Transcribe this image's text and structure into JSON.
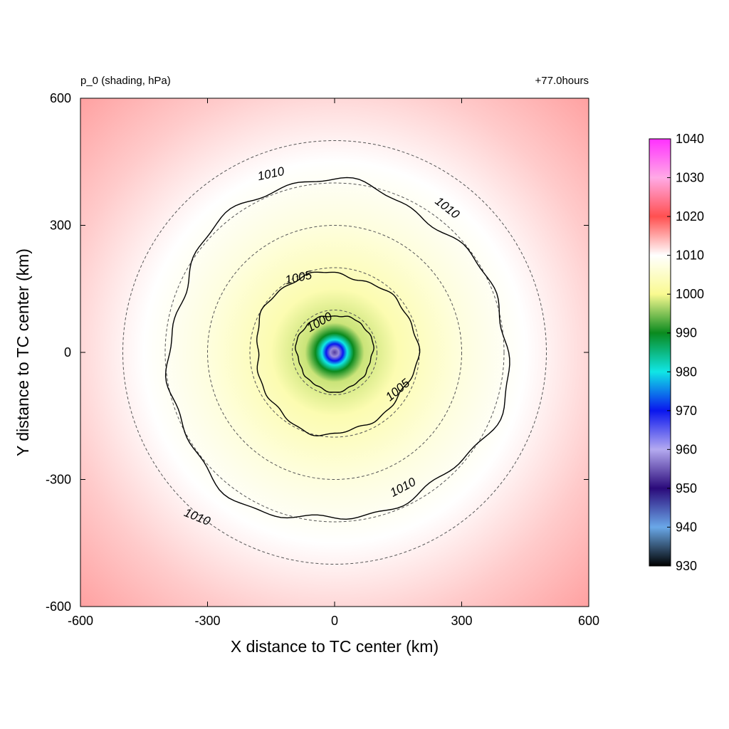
{
  "chart_data": {
    "type": "heatmap",
    "title_left": "p_0 (shading, hPa)",
    "title_right": "+77.0hours",
    "xlabel": "X distance to TC center (km)",
    "ylabel": "Y distance to TC center (km)",
    "xlim": [
      -600,
      600
    ],
    "ylim": [
      -600,
      600
    ],
    "xticks": [
      -600,
      -300,
      0,
      300,
      600
    ],
    "yticks": [
      -600,
      -300,
      0,
      300,
      600
    ],
    "colorbar": {
      "range": [
        930,
        1040
      ],
      "ticks": [
        930,
        940,
        950,
        960,
        970,
        980,
        990,
        1000,
        1010,
        1020,
        1030,
        1040
      ],
      "stops": [
        {
          "value": 930,
          "color": "#000000"
        },
        {
          "value": 940,
          "color": "#6aa8e8"
        },
        {
          "value": 950,
          "color": "#2a0a7a"
        },
        {
          "value": 960,
          "color": "#b4aaf0"
        },
        {
          "value": 970,
          "color": "#0a16ee"
        },
        {
          "value": 980,
          "color": "#10e6e6"
        },
        {
          "value": 990,
          "color": "#0a8a1e"
        },
        {
          "value": 1000,
          "color": "#fafa90"
        },
        {
          "value": 1010,
          "color": "#ffffff"
        },
        {
          "value": 1020,
          "color": "#ff5050"
        },
        {
          "value": 1030,
          "color": "#ffaae6"
        },
        {
          "value": 1040,
          "color": "#ff30ff"
        }
      ]
    },
    "field": {
      "center": [
        0,
        0
      ],
      "profile": [
        {
          "r": 0,
          "value": 953
        },
        {
          "r": 10,
          "value": 958
        },
        {
          "r": 20,
          "value": 970
        },
        {
          "r": 30,
          "value": 980
        },
        {
          "r": 45,
          "value": 990
        },
        {
          "r": 70,
          "value": 998
        },
        {
          "r": 150,
          "value": 1003
        },
        {
          "r": 300,
          "value": 1007
        },
        {
          "r": 450,
          "value": 1010
        },
        {
          "r": 650,
          "value": 1013
        },
        {
          "r": 900,
          "value": 1016
        }
      ]
    },
    "contours": [
      {
        "level": 1000,
        "label": "1000",
        "radius": 90
      },
      {
        "level": 1005,
        "label": "1005",
        "radius": 190
      },
      {
        "level": 1010,
        "label": "1010",
        "radius": 400
      }
    ],
    "contour_labels": [
      {
        "text": "1010",
        "x": -150,
        "y": 420,
        "angle": -12
      },
      {
        "text": "1010",
        "x": 265,
        "y": 340,
        "angle": 38
      },
      {
        "text": "1010",
        "x": 162,
        "y": -320,
        "angle": -28
      },
      {
        "text": "1010",
        "x": -325,
        "y": -390,
        "angle": 22
      },
      {
        "text": "1005",
        "x": -85,
        "y": 175,
        "angle": -12
      },
      {
        "text": "1005",
        "x": 150,
        "y": -90,
        "angle": -40
      },
      {
        "text": "1000",
        "x": -35,
        "y": 70,
        "angle": -30
      }
    ],
    "reference_circles_km": [
      100,
      200,
      300,
      400,
      500
    ]
  }
}
